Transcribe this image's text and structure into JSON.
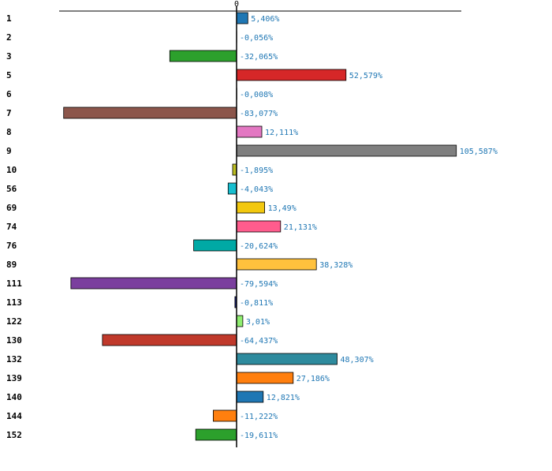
{
  "chart_data": {
    "type": "bar",
    "orientation": "horizontal",
    "title": "",
    "xlabel": "",
    "ylabel": "",
    "xlim": [
      -93,
      115
    ],
    "zero_tick_label": "0",
    "grid": false,
    "legend": "none",
    "categories": [
      "1",
      "2",
      "3",
      "5",
      "6",
      "7",
      "8",
      "9",
      "10",
      "56",
      "69",
      "74",
      "76",
      "89",
      "111",
      "113",
      "122",
      "130",
      "132",
      "139",
      "140",
      "144",
      "152"
    ],
    "values": [
      5.406,
      -0.056,
      -32.065,
      52.579,
      -0.008,
      -83.077,
      12.111,
      105.587,
      -1.895,
      -4.043,
      13.49,
      21.131,
      -20.624,
      38.328,
      -79.594,
      -0.811,
      3.01,
      -64.437,
      48.307,
      27.186,
      12.821,
      -11.222,
      -19.611
    ],
    "value_labels": [
      "5,406%",
      "-0,056%",
      "-32,065%",
      "52,579%",
      "-0,008%",
      "-83,077%",
      "12,111%",
      "105,587%",
      "-1,895%",
      "-4,043%",
      "13,49%",
      "21,131%",
      "-20,624%",
      "38,328%",
      "-79,594%",
      "-0,811%",
      "3,01%",
      "-64,437%",
      "48,307%",
      "27,186%",
      "12,821%",
      "-11,222%",
      "-19,611%"
    ],
    "colors": [
      "#1f77b4",
      "#1f77b4",
      "#2ca02c",
      "#d62728",
      "#9467bd",
      "#8c564b",
      "#e377c2",
      "#7f7f7f",
      "#bcbd22",
      "#17becf",
      "#f2c80f",
      "#ff5c8d",
      "#00a9a5",
      "#ffc13d",
      "#7b3f9e",
      "#1a237e",
      "#90ee70",
      "#c0392b",
      "#2e8b9e",
      "#ff7f0e",
      "#1f77b4",
      "#ff7f0e",
      "#2ca02c"
    ]
  }
}
